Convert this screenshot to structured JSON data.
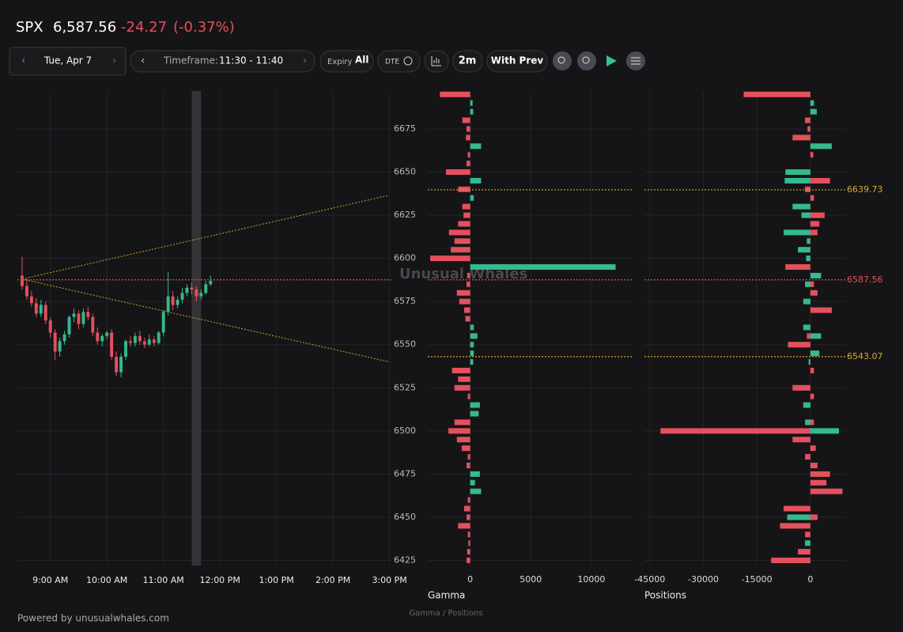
{
  "header": {
    "ticker": "SPX",
    "price": "6,587.56",
    "change": "-24.27",
    "change_pct": "(-0.37%)"
  },
  "toolbar": {
    "date": "Tue, Apr 7",
    "timeframe_label": "Timeframe:",
    "timeframe": "11:30 - 11:40",
    "expiry_label": "Expiry",
    "expiry": "All",
    "dte": "DTE",
    "interval": "2m",
    "compare": "With Prev"
  },
  "watermark": "Unusual Whales",
  "footer": {
    "credit": "Powered by unusualwhales.com",
    "caption": "Gamma / Positions"
  },
  "chart_data": [
    {
      "type": "candlestick",
      "up_color": "#35b98f",
      "down_color": "#e5505d",
      "x": [
        510,
        515,
        520,
        525,
        530,
        535,
        540,
        545,
        550,
        555,
        560,
        565,
        570,
        575,
        580,
        585,
        590,
        595,
        600,
        605,
        610,
        615,
        620,
        625,
        630,
        635,
        640,
        645,
        650,
        655,
        660,
        665,
        670,
        675,
        680,
        685,
        690,
        695,
        700,
        705,
        710
      ],
      "open": [
        6590,
        6584,
        6578,
        6574,
        6568,
        6573,
        6564,
        6557,
        6546,
        6552,
        6556,
        6566,
        6568,
        6562,
        6569,
        6566,
        6557,
        6552,
        6555,
        6557,
        6543,
        6534,
        6543,
        6552,
        6551,
        6555,
        6552,
        6550,
        6553,
        6551,
        6557,
        6569,
        6578,
        6573,
        6576,
        6580,
        6583,
        6582,
        6578,
        6580,
        6585
      ],
      "high": [
        6601,
        6588,
        6581,
        6577,
        6576,
        6575,
        6566,
        6559,
        6554,
        6558,
        6567,
        6571,
        6570,
        6571,
        6572,
        6568,
        6560,
        6556,
        6558,
        6559,
        6546,
        6545,
        6553,
        6555,
        6557,
        6558,
        6554,
        6556,
        6555,
        6558,
        6570,
        6592,
        6581,
        6578,
        6583,
        6585,
        6586,
        6584,
        6582,
        6587,
        6590
      ],
      "low": [
        6582,
        6576,
        6572,
        6566,
        6566,
        6562,
        6554,
        6541,
        6543,
        6550,
        6554,
        6563,
        6559,
        6560,
        6564,
        6555,
        6550,
        6549,
        6553,
        6541,
        6532,
        6531,
        6541,
        6549,
        6549,
        6550,
        6548,
        6549,
        6549,
        6550,
        6555,
        6567,
        6570,
        6571,
        6574,
        6578,
        6579,
        6575,
        6576,
        6579,
        6584
      ],
      "close": [
        6584,
        6578,
        6574,
        6568,
        6573,
        6564,
        6557,
        6546,
        6552,
        6556,
        6566,
        6568,
        6562,
        6569,
        6566,
        6557,
        6552,
        6555,
        6557,
        6543,
        6534,
        6543,
        6552,
        6551,
        6555,
        6552,
        6550,
        6553,
        6551,
        6557,
        6569,
        6578,
        6573,
        6576,
        6580,
        6583,
        6582,
        6578,
        6580,
        6585,
        6587
      ],
      "xlim": [
        505,
        902
      ],
      "xticks": [
        {
          "value": 540,
          "label": "9:00 AM"
        },
        {
          "value": 600,
          "label": "10:00 AM"
        },
        {
          "value": 660,
          "label": "11:00 AM"
        },
        {
          "value": 720,
          "label": "12:00 PM"
        },
        {
          "value": 780,
          "label": "1:00 PM"
        },
        {
          "value": 840,
          "label": "2:00 PM"
        },
        {
          "value": 900,
          "label": "3:00 PM"
        }
      ],
      "ylim": [
        6422,
        6697
      ],
      "yticks": [
        6425,
        6450,
        6475,
        6500,
        6525,
        6550,
        6575,
        6600,
        6625,
        6650,
        6675
      ],
      "grid": true,
      "highlight": [
        690,
        700
      ],
      "trend_lines": [
        {
          "color": "#d9a520",
          "x": [
            510,
            899
          ],
          "y": [
            6588,
            6636.5
          ]
        },
        {
          "color": "#d9a520",
          "x": [
            510,
            899
          ],
          "y": [
            6588,
            6540.1
          ]
        }
      ]
    },
    {
      "type": "hbar",
      "x_label": "Gamma",
      "positive_color": "#35b98f",
      "negative_color": "#e5505d",
      "y": [
        6695,
        6690,
        6685,
        6680,
        6675,
        6670,
        6665,
        6660,
        6655,
        6650,
        6645,
        6640,
        6635,
        6630,
        6625,
        6620,
        6615,
        6610,
        6605,
        6600,
        6595,
        6590,
        6585,
        6580,
        6575,
        6570,
        6565,
        6560,
        6555,
        6550,
        6545,
        6540,
        6535,
        6530,
        6525,
        6520,
        6515,
        6510,
        6505,
        6500,
        6495,
        6490,
        6485,
        6480,
        6475,
        6470,
        6465,
        6460,
        6455,
        6450,
        6445,
        6440,
        6435,
        6430,
        6425
      ],
      "values": [
        -2500,
        200,
        250,
        -650,
        -300,
        -350,
        900,
        -200,
        -300,
        -2000,
        900,
        -1000,
        300,
        -650,
        -550,
        -1000,
        -1750,
        -1300,
        -1600,
        -3300,
        12000,
        -250,
        -300,
        -1100,
        -900,
        -500,
        -400,
        300,
        600,
        300,
        300,
        250,
        -1500,
        -1000,
        -1300,
        -200,
        800,
        700,
        -1300,
        -1800,
        -1100,
        -700,
        -200,
        -300,
        800,
        400,
        900,
        -200,
        -500,
        -300,
        -1000,
        -200,
        -150,
        -250,
        -300
      ],
      "xlim": [
        -3500,
        13400
      ],
      "xticks": [
        0,
        5000,
        10000
      ],
      "grid": true
    },
    {
      "type": "hbar",
      "x_label": "Positions",
      "y": [
        6695,
        6690,
        6685,
        6680,
        6675,
        6670,
        6665,
        6660,
        6655,
        6650,
        6645,
        6640,
        6635,
        6630,
        6625,
        6620,
        6615,
        6610,
        6605,
        6600,
        6595,
        6590,
        6585,
        6580,
        6575,
        6570,
        6565,
        6560,
        6555,
        6550,
        6545,
        6540,
        6535,
        6530,
        6525,
        6520,
        6515,
        6510,
        6505,
        6500,
        6495,
        6490,
        6485,
        6480,
        6475,
        6470,
        6465,
        6460,
        6455,
        6450,
        6445,
        6440,
        6435,
        6430,
        6425
      ],
      "series": [
        {
          "color": "#e5505d",
          "values": [
            -18700,
            0,
            0,
            -1500,
            -800,
            -5000,
            0,
            800,
            0,
            0,
            5500,
            -1500,
            1000,
            0,
            4000,
            2500,
            2000,
            0,
            0,
            0,
            -7000,
            0,
            1000,
            2000,
            0,
            6000,
            0,
            0,
            -1000,
            -6300,
            0,
            0,
            1000,
            0,
            -5000,
            1000,
            0,
            0,
            1000,
            -42000,
            -5000,
            1500,
            -1500,
            2000,
            5500,
            4500,
            9000,
            0,
            -7500,
            2000,
            -8500,
            -1500,
            0,
            -3500,
            -11000
          ]
        },
        {
          "color": "#35b98f",
          "values": [
            0,
            1000,
            1800,
            0,
            0,
            0,
            6000,
            0,
            0,
            -7000,
            -7200,
            0,
            0,
            -5000,
            -2500,
            0,
            -7500,
            -1000,
            -3500,
            -1200,
            0,
            3000,
            -1500,
            0,
            -2000,
            0,
            0,
            -2000,
            3000,
            0,
            2500,
            -500,
            0,
            0,
            0,
            0,
            -2000,
            0,
            -1500,
            8000,
            0,
            0,
            0,
            0,
            0,
            0,
            0,
            0,
            0,
            -6500,
            0,
            0,
            -1500,
            0,
            0
          ]
        }
      ],
      "xlim": [
        -46500,
        10000
      ],
      "xticks": [
        -45000,
        -30000,
        -15000,
        0
      ],
      "grid": true,
      "levels": [
        {
          "value": 6639.73,
          "color": "#e0a82e",
          "extend_left": false
        },
        {
          "value": 6587.56,
          "color": "#e5505d",
          "extend_left": true
        },
        {
          "value": 6543.07,
          "color": "#e0a82e",
          "extend_left": false
        }
      ]
    }
  ]
}
